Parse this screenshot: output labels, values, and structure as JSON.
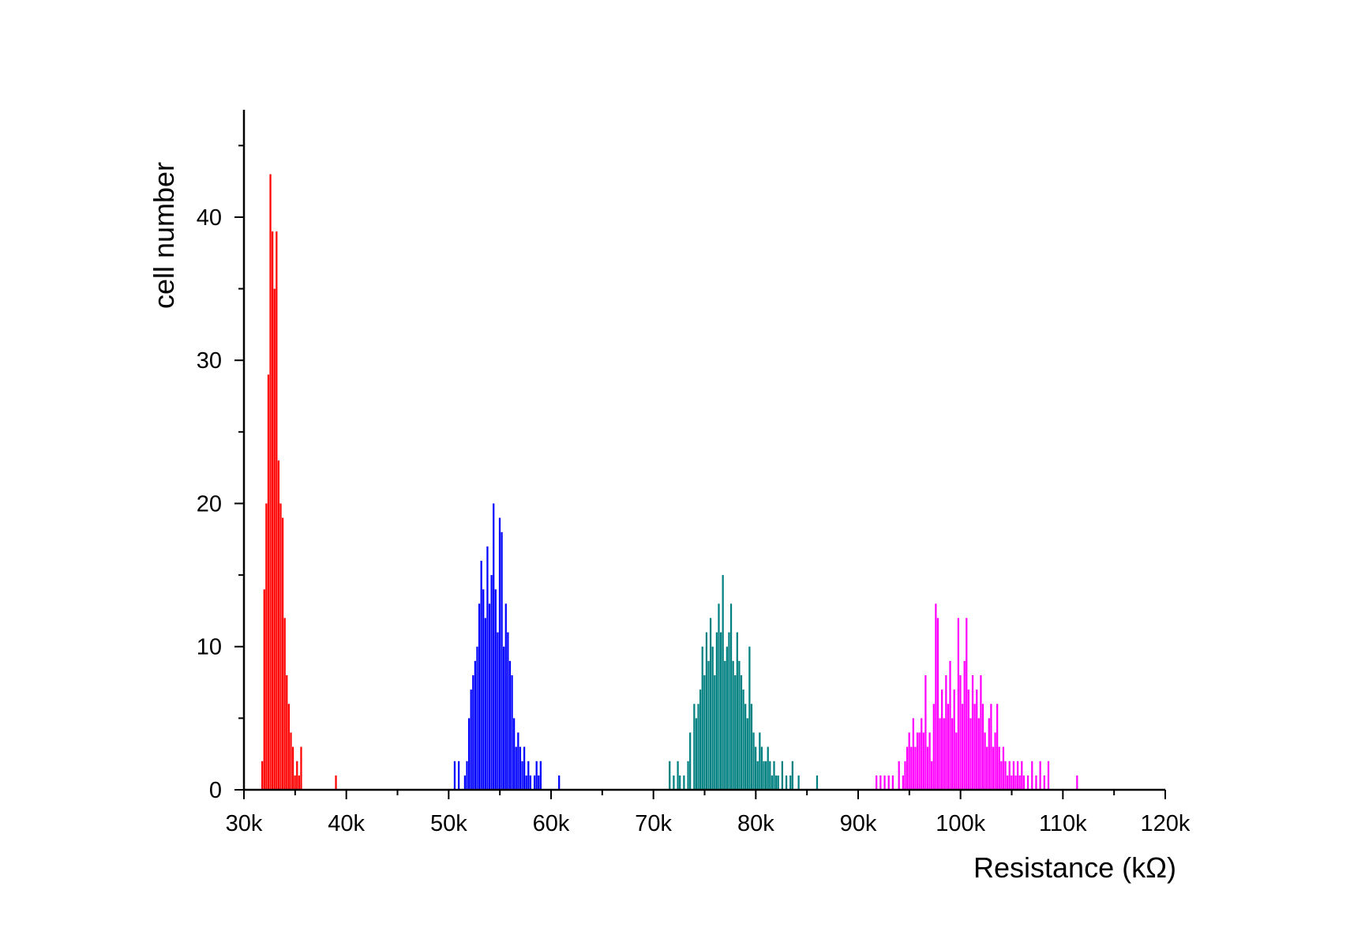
{
  "chart_data": {
    "type": "bar",
    "title": "",
    "xlabel": "Resistance (kΩ)",
    "ylabel": "cell number",
    "xlim": [
      30,
      120
    ],
    "ylim": [
      0,
      47.5
    ],
    "grid": false,
    "legend": "none",
    "bin_width": 0.2,
    "x_ticks": [
      {
        "value": 30,
        "label": "30k"
      },
      {
        "value": 40,
        "label": "40k"
      },
      {
        "value": 50,
        "label": "50k"
      },
      {
        "value": 60,
        "label": "60k"
      },
      {
        "value": 70,
        "label": "70k"
      },
      {
        "value": 80,
        "label": "80k"
      },
      {
        "value": 90,
        "label": "90k"
      },
      {
        "value": 100,
        "label": "100k"
      },
      {
        "value": 110,
        "label": "110k"
      },
      {
        "value": 120,
        "label": "120k"
      }
    ],
    "y_ticks": [
      {
        "value": 0,
        "label": "0"
      },
      {
        "value": 10,
        "label": "10"
      },
      {
        "value": 20,
        "label": "20"
      },
      {
        "value": 30,
        "label": "30"
      },
      {
        "value": 40,
        "label": "40"
      }
    ],
    "series": [
      {
        "color": "#ff0000",
        "bins": [
          [
            31.8,
            2
          ],
          [
            32.0,
            14
          ],
          [
            32.2,
            20
          ],
          [
            32.4,
            29
          ],
          [
            32.6,
            43
          ],
          [
            32.8,
            39
          ],
          [
            33.0,
            35
          ],
          [
            33.2,
            39
          ],
          [
            33.4,
            23
          ],
          [
            33.6,
            20
          ],
          [
            33.8,
            19
          ],
          [
            34.0,
            12
          ],
          [
            34.2,
            8
          ],
          [
            34.4,
            6
          ],
          [
            34.6,
            4
          ],
          [
            34.8,
            3
          ],
          [
            35.0,
            1
          ],
          [
            35.2,
            2
          ],
          [
            35.4,
            1
          ],
          [
            35.6,
            3
          ],
          [
            39.0,
            1
          ]
        ]
      },
      {
        "color": "#0000ff",
        "bins": [
          [
            50.6,
            2
          ],
          [
            51.0,
            2
          ],
          [
            51.6,
            1
          ],
          [
            51.8,
            2
          ],
          [
            52.0,
            5
          ],
          [
            52.2,
            7
          ],
          [
            52.4,
            8
          ],
          [
            52.6,
            9
          ],
          [
            52.8,
            10
          ],
          [
            53.0,
            13
          ],
          [
            53.2,
            16
          ],
          [
            53.4,
            14
          ],
          [
            53.6,
            12
          ],
          [
            53.8,
            17
          ],
          [
            54.0,
            13
          ],
          [
            54.2,
            15
          ],
          [
            54.4,
            20
          ],
          [
            54.6,
            14
          ],
          [
            54.8,
            11
          ],
          [
            55.0,
            19
          ],
          [
            55.2,
            18
          ],
          [
            55.4,
            10
          ],
          [
            55.6,
            13
          ],
          [
            55.8,
            11
          ],
          [
            56.0,
            9
          ],
          [
            56.2,
            8
          ],
          [
            56.4,
            5
          ],
          [
            56.6,
            3
          ],
          [
            56.8,
            4
          ],
          [
            57.0,
            3
          ],
          [
            57.2,
            2
          ],
          [
            57.4,
            3
          ],
          [
            57.6,
            1
          ],
          [
            57.8,
            2
          ],
          [
            58.0,
            1
          ],
          [
            58.4,
            1
          ],
          [
            58.6,
            2
          ],
          [
            58.8,
            1
          ],
          [
            59.0,
            2
          ],
          [
            60.8,
            1
          ]
        ]
      },
      {
        "color": "#008080",
        "bins": [
          [
            71.6,
            2
          ],
          [
            72.0,
            1
          ],
          [
            72.4,
            2
          ],
          [
            72.6,
            1
          ],
          [
            73.0,
            1
          ],
          [
            73.4,
            2
          ],
          [
            73.6,
            4
          ],
          [
            74.0,
            6
          ],
          [
            74.2,
            5
          ],
          [
            74.4,
            6
          ],
          [
            74.6,
            7
          ],
          [
            74.8,
            10
          ],
          [
            75.0,
            8
          ],
          [
            75.2,
            11
          ],
          [
            75.4,
            9
          ],
          [
            75.6,
            12
          ],
          [
            75.8,
            10
          ],
          [
            76.0,
            8
          ],
          [
            76.2,
            11
          ],
          [
            76.4,
            13
          ],
          [
            76.6,
            11
          ],
          [
            76.8,
            15
          ],
          [
            77.0,
            9
          ],
          [
            77.2,
            10
          ],
          [
            77.4,
            11
          ],
          [
            77.6,
            13
          ],
          [
            77.8,
            9
          ],
          [
            78.0,
            8
          ],
          [
            78.2,
            11
          ],
          [
            78.4,
            9
          ],
          [
            78.6,
            8
          ],
          [
            78.8,
            7
          ],
          [
            79.0,
            6
          ],
          [
            79.2,
            5
          ],
          [
            79.4,
            10
          ],
          [
            79.6,
            6
          ],
          [
            79.8,
            4
          ],
          [
            80.0,
            3
          ],
          [
            80.2,
            2
          ],
          [
            80.4,
            4
          ],
          [
            80.6,
            3
          ],
          [
            80.8,
            2
          ],
          [
            81.0,
            2
          ],
          [
            81.2,
            3
          ],
          [
            81.4,
            2
          ],
          [
            81.6,
            1
          ],
          [
            81.8,
            2
          ],
          [
            82.0,
            1
          ],
          [
            82.2,
            1
          ],
          [
            82.6,
            2
          ],
          [
            83.0,
            1
          ],
          [
            83.4,
            1
          ],
          [
            83.6,
            2
          ],
          [
            84.2,
            1
          ],
          [
            86.0,
            1
          ]
        ]
      },
      {
        "color": "#ff00ff",
        "bins": [
          [
            91.8,
            1
          ],
          [
            92.2,
            1
          ],
          [
            92.6,
            1
          ],
          [
            93.0,
            1
          ],
          [
            93.4,
            1
          ],
          [
            94.0,
            2
          ],
          [
            94.4,
            1
          ],
          [
            94.6,
            2
          ],
          [
            94.8,
            3
          ],
          [
            95.0,
            4
          ],
          [
            95.2,
            3
          ],
          [
            95.4,
            5
          ],
          [
            95.6,
            3
          ],
          [
            95.8,
            4
          ],
          [
            96.0,
            4
          ],
          [
            96.2,
            5
          ],
          [
            96.4,
            4
          ],
          [
            96.6,
            8
          ],
          [
            96.8,
            3
          ],
          [
            97.0,
            4
          ],
          [
            97.2,
            2
          ],
          [
            97.4,
            6
          ],
          [
            97.6,
            13
          ],
          [
            97.8,
            12
          ],
          [
            98.0,
            5
          ],
          [
            98.2,
            7
          ],
          [
            98.4,
            5
          ],
          [
            98.6,
            8
          ],
          [
            98.8,
            6
          ],
          [
            99.0,
            9
          ],
          [
            99.2,
            5
          ],
          [
            99.4,
            7
          ],
          [
            99.6,
            4
          ],
          [
            99.8,
            12
          ],
          [
            100.0,
            8
          ],
          [
            100.2,
            6
          ],
          [
            100.4,
            9
          ],
          [
            100.6,
            12
          ],
          [
            100.8,
            7
          ],
          [
            101.0,
            5
          ],
          [
            101.2,
            8
          ],
          [
            101.4,
            6
          ],
          [
            101.6,
            7
          ],
          [
            101.8,
            5
          ],
          [
            102.0,
            8
          ],
          [
            102.2,
            6
          ],
          [
            102.4,
            4
          ],
          [
            102.6,
            3
          ],
          [
            102.8,
            5
          ],
          [
            103.0,
            6
          ],
          [
            103.2,
            3
          ],
          [
            103.4,
            4
          ],
          [
            103.6,
            6
          ],
          [
            103.8,
            3
          ],
          [
            104.0,
            2
          ],
          [
            104.2,
            3
          ],
          [
            104.4,
            2
          ],
          [
            104.6,
            1
          ],
          [
            104.8,
            2
          ],
          [
            105.0,
            1
          ],
          [
            105.2,
            2
          ],
          [
            105.4,
            1
          ],
          [
            105.6,
            2
          ],
          [
            105.8,
            1
          ],
          [
            106.0,
            2
          ],
          [
            106.2,
            1
          ],
          [
            106.6,
            1
          ],
          [
            107.0,
            2
          ],
          [
            107.4,
            1
          ],
          [
            107.8,
            2
          ],
          [
            108.2,
            1
          ],
          [
            108.6,
            2
          ],
          [
            111.4,
            1
          ]
        ]
      }
    ]
  }
}
